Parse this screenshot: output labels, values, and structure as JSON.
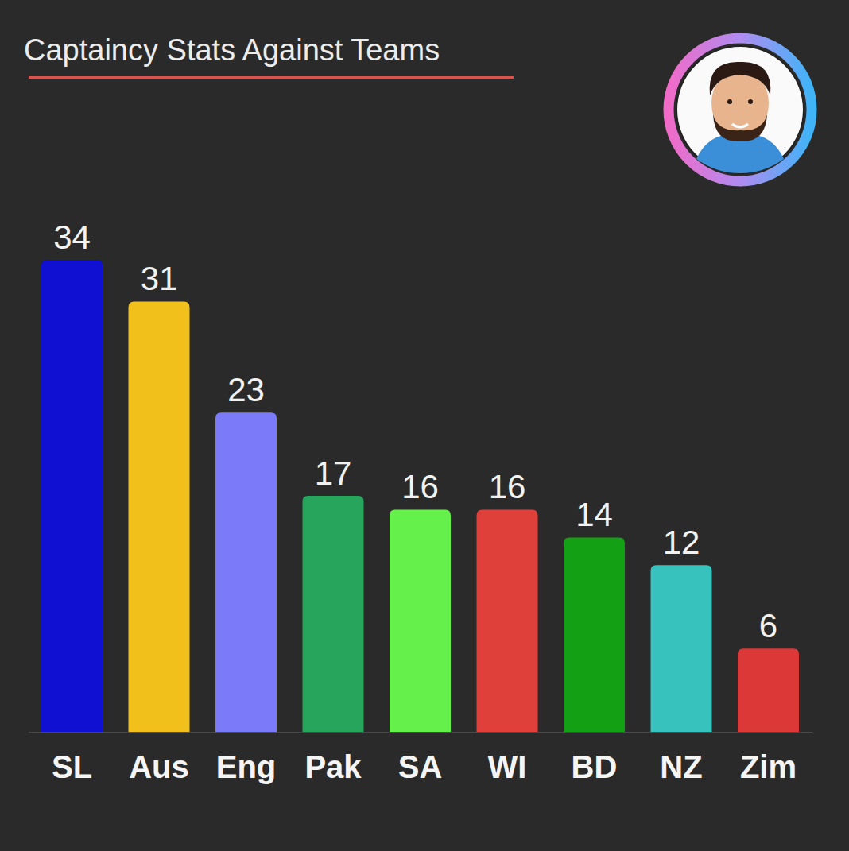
{
  "chart_data": {
    "type": "bar",
    "title": "Captaincy Stats Against Teams",
    "categories": [
      "SL",
      "Aus",
      "Eng",
      "Pak",
      "SA",
      "WI",
      "BD",
      "NZ",
      "Zim"
    ],
    "values": [
      34,
      31,
      23,
      17,
      16,
      16,
      14,
      12,
      6
    ],
    "colors": [
      "#1010d2",
      "#f2c01a",
      "#7b7bfa",
      "#27a55c",
      "#66f04c",
      "#e0403a",
      "#14a014",
      "#37c2bd",
      "#dc3838"
    ],
    "ylim": [
      0,
      34
    ],
    "data_labels": true,
    "tick_labels": "x",
    "grid": false
  }
}
